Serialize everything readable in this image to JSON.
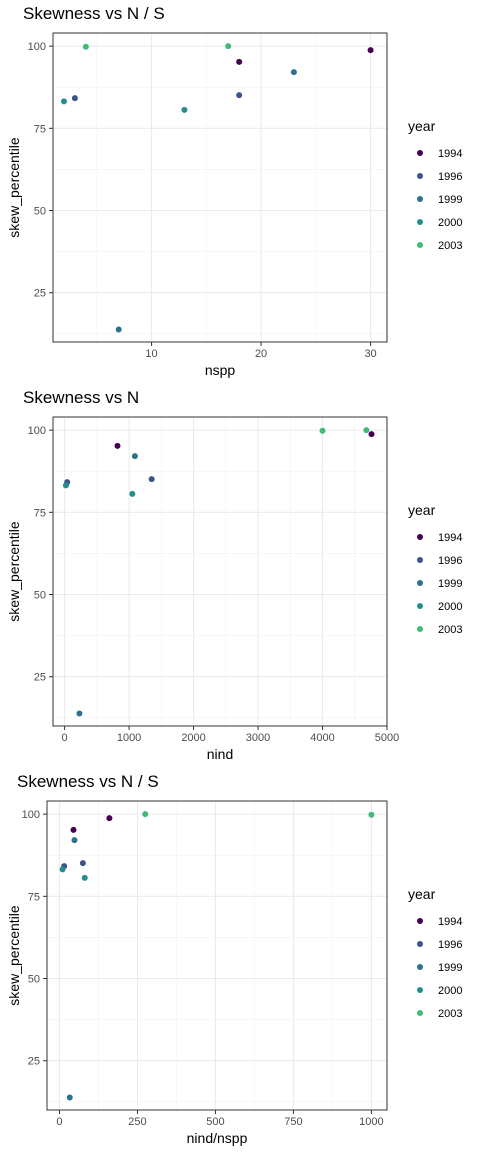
{
  "legend": {
    "title": "year",
    "items": [
      {
        "label": "1994",
        "color": "#440154"
      },
      {
        "label": "1996",
        "color": "#3b528b"
      },
      {
        "label": "1999",
        "color": "#2c728e"
      },
      {
        "label": "2000",
        "color": "#21908c"
      },
      {
        "label": "2003",
        "color": "#3fbc73"
      }
    ]
  },
  "chart_data": [
    {
      "type": "scatter",
      "title": "Skewness vs N / S",
      "xlabel": "nspp",
      "ylabel": "skew_percentile",
      "xlim": [
        1,
        31.5
      ],
      "ylim": [
        10,
        104
      ],
      "xticks": [
        10,
        20,
        30
      ],
      "yticks": [
        25,
        50,
        75,
        100
      ],
      "points": [
        {
          "x": 18,
          "y": 95.2,
          "year": "1994"
        },
        {
          "x": 30,
          "y": 98.8,
          "year": "1994"
        },
        {
          "x": 3,
          "y": 84.2,
          "year": "1996"
        },
        {
          "x": 18,
          "y": 85.1,
          "year": "1996"
        },
        {
          "x": 7,
          "y": 13.8,
          "year": "1999"
        },
        {
          "x": 23,
          "y": 92.1,
          "year": "1999"
        },
        {
          "x": 2,
          "y": 83.2,
          "year": "2000"
        },
        {
          "x": 13,
          "y": 80.6,
          "year": "2000"
        },
        {
          "x": 4,
          "y": 99.8,
          "year": "2003"
        },
        {
          "x": 17,
          "y": 100,
          "year": "2003"
        }
      ]
    },
    {
      "type": "scatter",
      "title": "Skewness vs N",
      "xlabel": "nind",
      "ylabel": "skew_percentile",
      "xlim": [
        -180,
        5000
      ],
      "ylim": [
        10,
        104
      ],
      "xticks": [
        0,
        1000,
        2000,
        3000,
        4000,
        5000
      ],
      "yticks": [
        25,
        50,
        75,
        100
      ],
      "points": [
        {
          "x": 820,
          "y": 95.2,
          "year": "1994"
        },
        {
          "x": 4760,
          "y": 98.8,
          "year": "1994"
        },
        {
          "x": 40,
          "y": 84.2,
          "year": "1996"
        },
        {
          "x": 1350,
          "y": 85.1,
          "year": "1996"
        },
        {
          "x": 230,
          "y": 13.8,
          "year": "1999"
        },
        {
          "x": 1090,
          "y": 92.1,
          "year": "1999"
        },
        {
          "x": 20,
          "y": 83.2,
          "year": "2000"
        },
        {
          "x": 1050,
          "y": 80.6,
          "year": "2000"
        },
        {
          "x": 4000,
          "y": 99.8,
          "year": "2003"
        },
        {
          "x": 4680,
          "y": 100,
          "year": "2003"
        }
      ]
    },
    {
      "type": "scatter",
      "title": "Skewness vs N / S",
      "xlabel": "nind/nspp",
      "ylabel": "skew_percentile",
      "xlim": [
        -40,
        1050
      ],
      "ylim": [
        10,
        104
      ],
      "xticks": [
        0,
        250,
        500,
        750,
        1000
      ],
      "yticks": [
        25,
        50,
        75,
        100
      ],
      "points": [
        {
          "x": 45,
          "y": 95.2,
          "year": "1994"
        },
        {
          "x": 160,
          "y": 98.8,
          "year": "1994"
        },
        {
          "x": 15,
          "y": 84.2,
          "year": "1996"
        },
        {
          "x": 75,
          "y": 85.1,
          "year": "1996"
        },
        {
          "x": 33,
          "y": 13.8,
          "year": "1999"
        },
        {
          "x": 48,
          "y": 92.1,
          "year": "1999"
        },
        {
          "x": 10,
          "y": 83.2,
          "year": "2000"
        },
        {
          "x": 81,
          "y": 80.6,
          "year": "2000"
        },
        {
          "x": 1000,
          "y": 99.8,
          "year": "2003"
        },
        {
          "x": 275,
          "y": 100,
          "year": "2003"
        }
      ]
    }
  ]
}
